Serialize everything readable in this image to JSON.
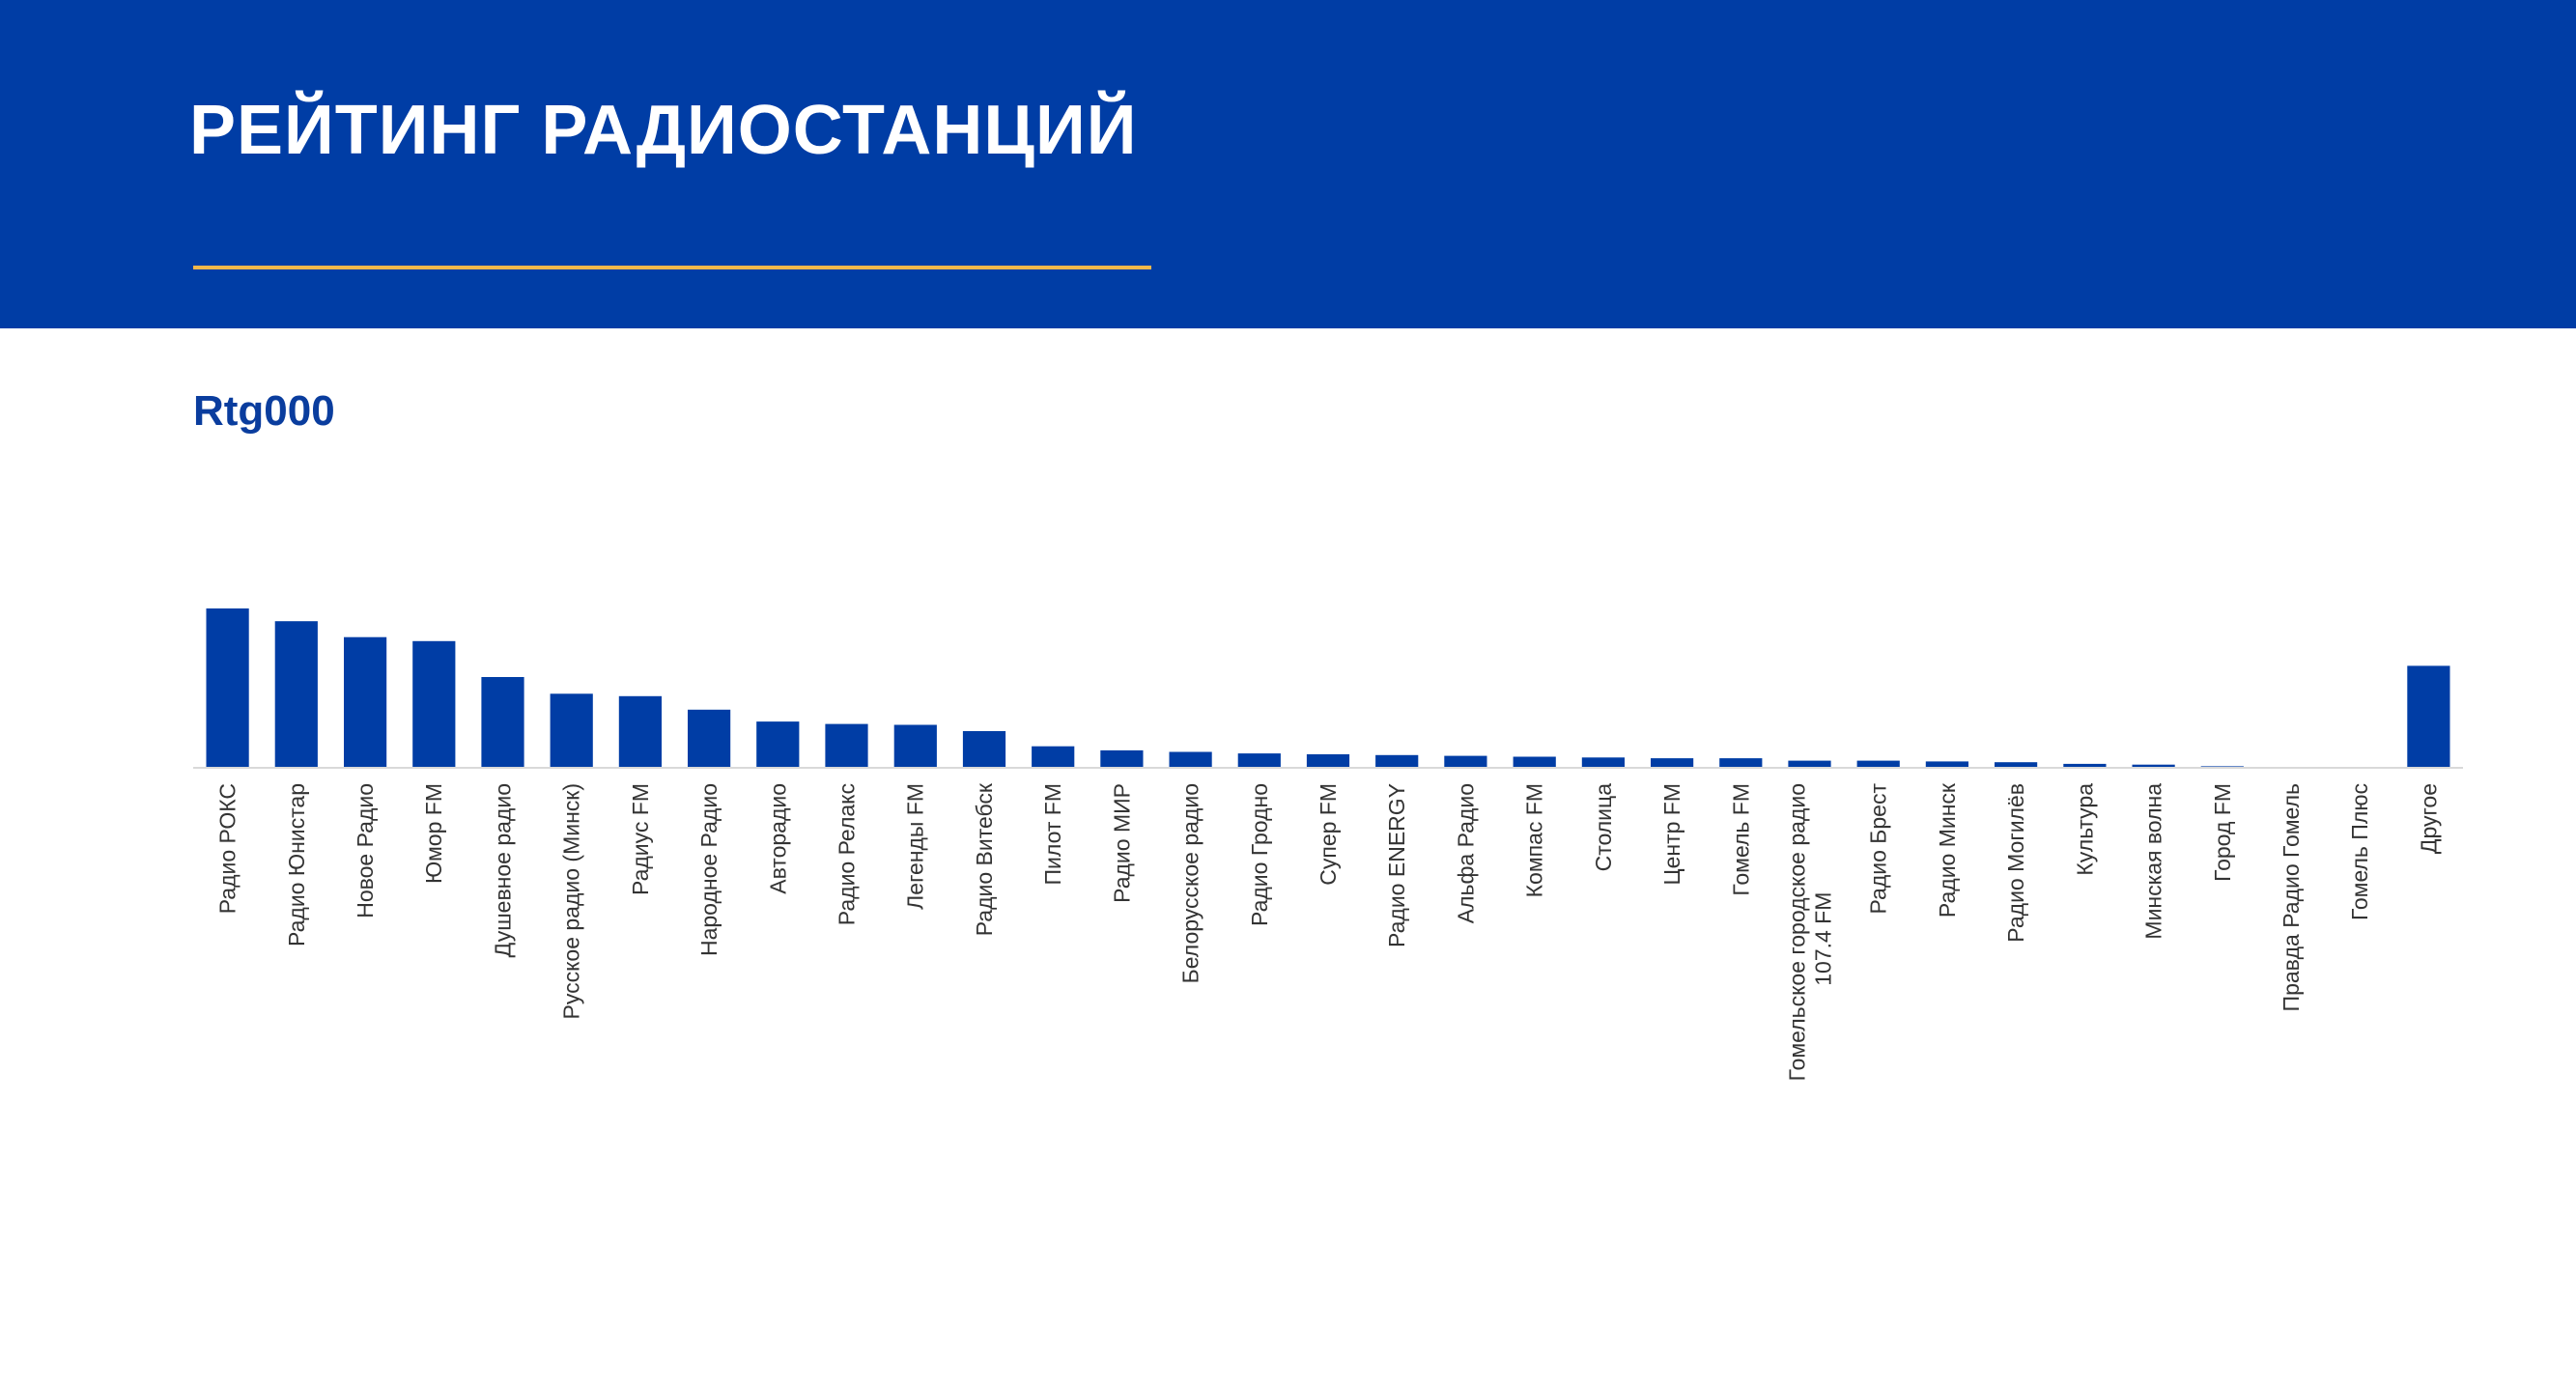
{
  "header": {
    "title": "РЕЙТИНГ РАДИОСТАНЦИЙ",
    "background_color": "#003da5",
    "accent_line_color": "#f2b84b"
  },
  "chart_data": {
    "type": "bar",
    "title": "Rtg000",
    "color": "#003da5",
    "ylim": [
      0,
      2.1
    ],
    "grid": false,
    "legend": "none",
    "categories": [
      "Радио РОКС",
      "Радио Юнистар",
      "Новое Радио",
      "Юмор FM",
      "Душевное радио",
      "Русское радио (Минск)",
      "Радиус FM",
      "Народное Радио",
      "Авторадио",
      "Радио Релакс",
      "Легенды FM",
      "Радио Витебск",
      "Пилот FM",
      "Радио МИР",
      "Белорусское радио",
      "Радио Гродно",
      "Супер FM",
      "Радио ENERGY",
      "Альфа Радио",
      "Компас FM",
      "Столица",
      "Центр FM",
      "Гомель FM",
      "Гомельское городское радио 107.4 FM",
      "Радио Брест",
      "Радио Минск",
      "Радио Могилёв",
      "Культура",
      "Минская волна",
      "Город FM",
      "Правда Радио Гомель",
      "Гомель Плюс",
      "Другое"
    ],
    "values": [
      2.0,
      1.84,
      1.64,
      1.59,
      1.14,
      0.93,
      0.9,
      0.73,
      0.58,
      0.55,
      0.54,
      0.46,
      0.27,
      0.22,
      0.2,
      0.18,
      0.17,
      0.16,
      0.15,
      0.14,
      0.13,
      0.12,
      0.12,
      0.09,
      0.09,
      0.08,
      0.07,
      0.05,
      0.04,
      0.02,
      0.0,
      0.0,
      1.28
    ]
  }
}
